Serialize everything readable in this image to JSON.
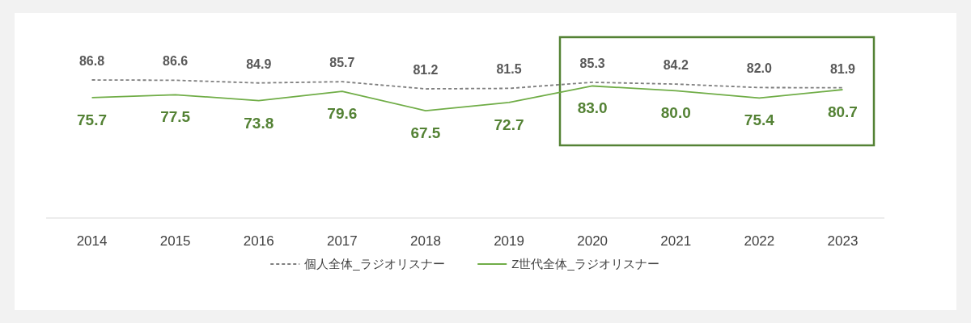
{
  "chart_data": {
    "type": "line",
    "categories": [
      "2014",
      "2015",
      "2016",
      "2017",
      "2018",
      "2019",
      "2020",
      "2021",
      "2022",
      "2023"
    ],
    "tick_labels": "x",
    "legend": "bottom",
    "marker": "none",
    "grid": false,
    "series": [
      {
        "name": "個人全体_ラジオリスナー",
        "color": "#7f7f7f",
        "line_style": "dashed",
        "values": [
          86.8,
          86.6,
          84.9,
          85.7,
          81.2,
          81.5,
          85.3,
          84.2,
          82.0,
          81.9
        ],
        "value_labels": [
          "86.8",
          "86.6",
          "84.9",
          "85.7",
          "81.2",
          "81.5",
          "85.3",
          "84.2",
          "82.0",
          "81.9"
        ]
      },
      {
        "name": "Z世代全体_ラジオリスナー",
        "color": "#70ad47",
        "line_style": "solid",
        "values": [
          75.7,
          77.5,
          73.8,
          79.6,
          67.5,
          72.7,
          83.0,
          80.0,
          75.4,
          80.7
        ],
        "value_labels": [
          "75.7",
          "77.5",
          "73.8",
          "79.6",
          "67.5",
          "72.7",
          "83.0",
          "80.0",
          "75.4",
          "80.7"
        ]
      }
    ]
  }
}
